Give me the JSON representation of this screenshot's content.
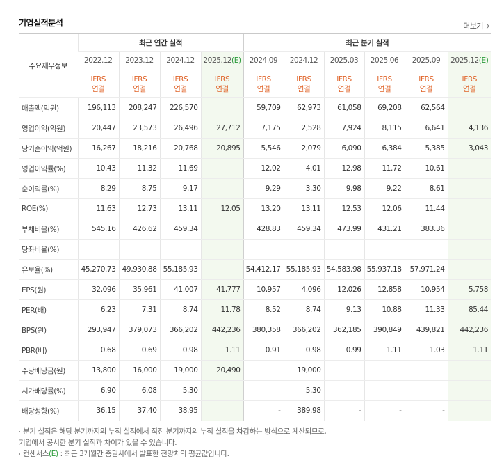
{
  "header": {
    "title": "기업실적분석",
    "more": "더보기"
  },
  "table": {
    "row_header": "주요재무정보",
    "groups": [
      "최근 연간 실적",
      "최근 분기 실적"
    ],
    "estimate_mark": "(E)",
    "standard": [
      "IFRS",
      "연결"
    ],
    "periods": [
      {
        "label": "2022.12",
        "estimate": false
      },
      {
        "label": "2023.12",
        "estimate": false
      },
      {
        "label": "2024.12",
        "estimate": false
      },
      {
        "label": "2025.12",
        "estimate": true
      },
      {
        "label": "2024.09",
        "estimate": false
      },
      {
        "label": "2024.12",
        "estimate": false
      },
      {
        "label": "2025.03",
        "estimate": false
      },
      {
        "label": "2025.06",
        "estimate": false
      },
      {
        "label": "2025.09",
        "estimate": false
      },
      {
        "label": "2025.12",
        "estimate": true
      }
    ],
    "row_groups": [
      {
        "rows": [
          {
            "label": "매출액(억원)",
            "cells": [
              "196,113",
              "208,247",
              "226,570",
              null,
              "59,709",
              "62,973",
              "61,058",
              "69,208",
              "62,564",
              null
            ]
          },
          {
            "label": "영업이익(억원)",
            "cells": [
              "20,447",
              "23,573",
              "26,496",
              "27,712",
              "7,175",
              "2,528",
              "7,924",
              "8,115",
              "6,641",
              "4,136"
            ]
          },
          {
            "label": "당기순이익(억원)",
            "cells": [
              "16,267",
              "18,216",
              "20,768",
              "20,895",
              "5,546",
              "2,079",
              "6,090",
              "6,384",
              "5,385",
              "3,043"
            ]
          }
        ]
      },
      {
        "rows": [
          {
            "label": "영업이익률(%)",
            "cells": [
              "10.43",
              "11.32",
              "11.69",
              null,
              "12.02",
              "4.01",
              "12.98",
              "11.72",
              "10.61",
              null
            ]
          },
          {
            "label": "순이익률(%)",
            "cells": [
              "8.29",
              "8.75",
              "9.17",
              null,
              "9.29",
              "3.30",
              "9.98",
              "9.22",
              "8.61",
              null
            ]
          },
          {
            "label": "ROE(%)",
            "cells": [
              "11.63",
              "12.73",
              "13.11",
              "12.05",
              "13.20",
              "13.11",
              "12.53",
              "12.06",
              "11.44",
              null
            ]
          }
        ]
      },
      {
        "rows": [
          {
            "label": "부채비율(%)",
            "cells": [
              "545.16",
              "426.62",
              "459.34",
              null,
              "428.83",
              "459.34",
              "473.99",
              "431.21",
              "383.36",
              null
            ]
          },
          {
            "label": "당좌비율(%)",
            "cells": [
              null,
              null,
              null,
              null,
              null,
              null,
              null,
              null,
              null,
              null
            ]
          },
          {
            "label": "유보율(%)",
            "cells": [
              "45,270.73",
              "49,930.88",
              "55,185.93",
              null,
              "54,412.17",
              "55,185.93",
              "54,583.98",
              "55,937.18",
              "57,971.24",
              null
            ]
          }
        ]
      },
      {
        "rows": [
          {
            "label": "EPS(원)",
            "cells": [
              "32,096",
              "35,961",
              "41,007",
              "41,777",
              "10,957",
              "4,096",
              "12,026",
              "12,858",
              "10,954",
              "5,758"
            ]
          },
          {
            "label": "PER(배)",
            "cells": [
              "6.23",
              "7.31",
              "8.74",
              "11.78",
              "8.52",
              "8.74",
              "9.13",
              "10.88",
              "11.33",
              "85.44"
            ]
          },
          {
            "label": "BPS(원)",
            "cells": [
              "293,947",
              "379,073",
              "366,202",
              "442,236",
              "380,358",
              "366,202",
              "362,185",
              "390,849",
              "439,821",
              "442,236"
            ]
          },
          {
            "label": "PBR(배)",
            "cells": [
              "0.68",
              "0.69",
              "0.98",
              "1.11",
              "0.91",
              "0.98",
              "0.99",
              "1.11",
              "1.03",
              "1.11"
            ]
          }
        ]
      },
      {
        "rows": [
          {
            "label": "주당배당금(원)",
            "cells": [
              "13,800",
              "16,000",
              "19,000",
              "20,490",
              null,
              "19,000",
              null,
              null,
              null,
              null
            ]
          },
          {
            "label": "시가배당률(%)",
            "cells": [
              "6.90",
              "6.08",
              "5.30",
              null,
              null,
              "5.30",
              null,
              null,
              null,
              null
            ]
          },
          {
            "label": "배당성향(%)",
            "cells": [
              "36.15",
              "37.40",
              "38.95",
              null,
              "-",
              "389.98",
              "-",
              "-",
              "-",
              null
            ]
          }
        ]
      }
    ]
  },
  "notes": [
    {
      "lines": [
        "분기 실적은 해당 분기까지의 누적 실적에서 직전 분기까지의 누적 실적을 차감하는 방식으로 계산되므로,",
        "기업에서 공시한 분기 실적과 차이가 있을 수 있습니다."
      ]
    },
    {
      "lines": [
        "컨센서스",
        "(E)",
        " : 최근 3개월간 증권사에서 발표한 전망치의 평균값입니다."
      ]
    }
  ]
}
